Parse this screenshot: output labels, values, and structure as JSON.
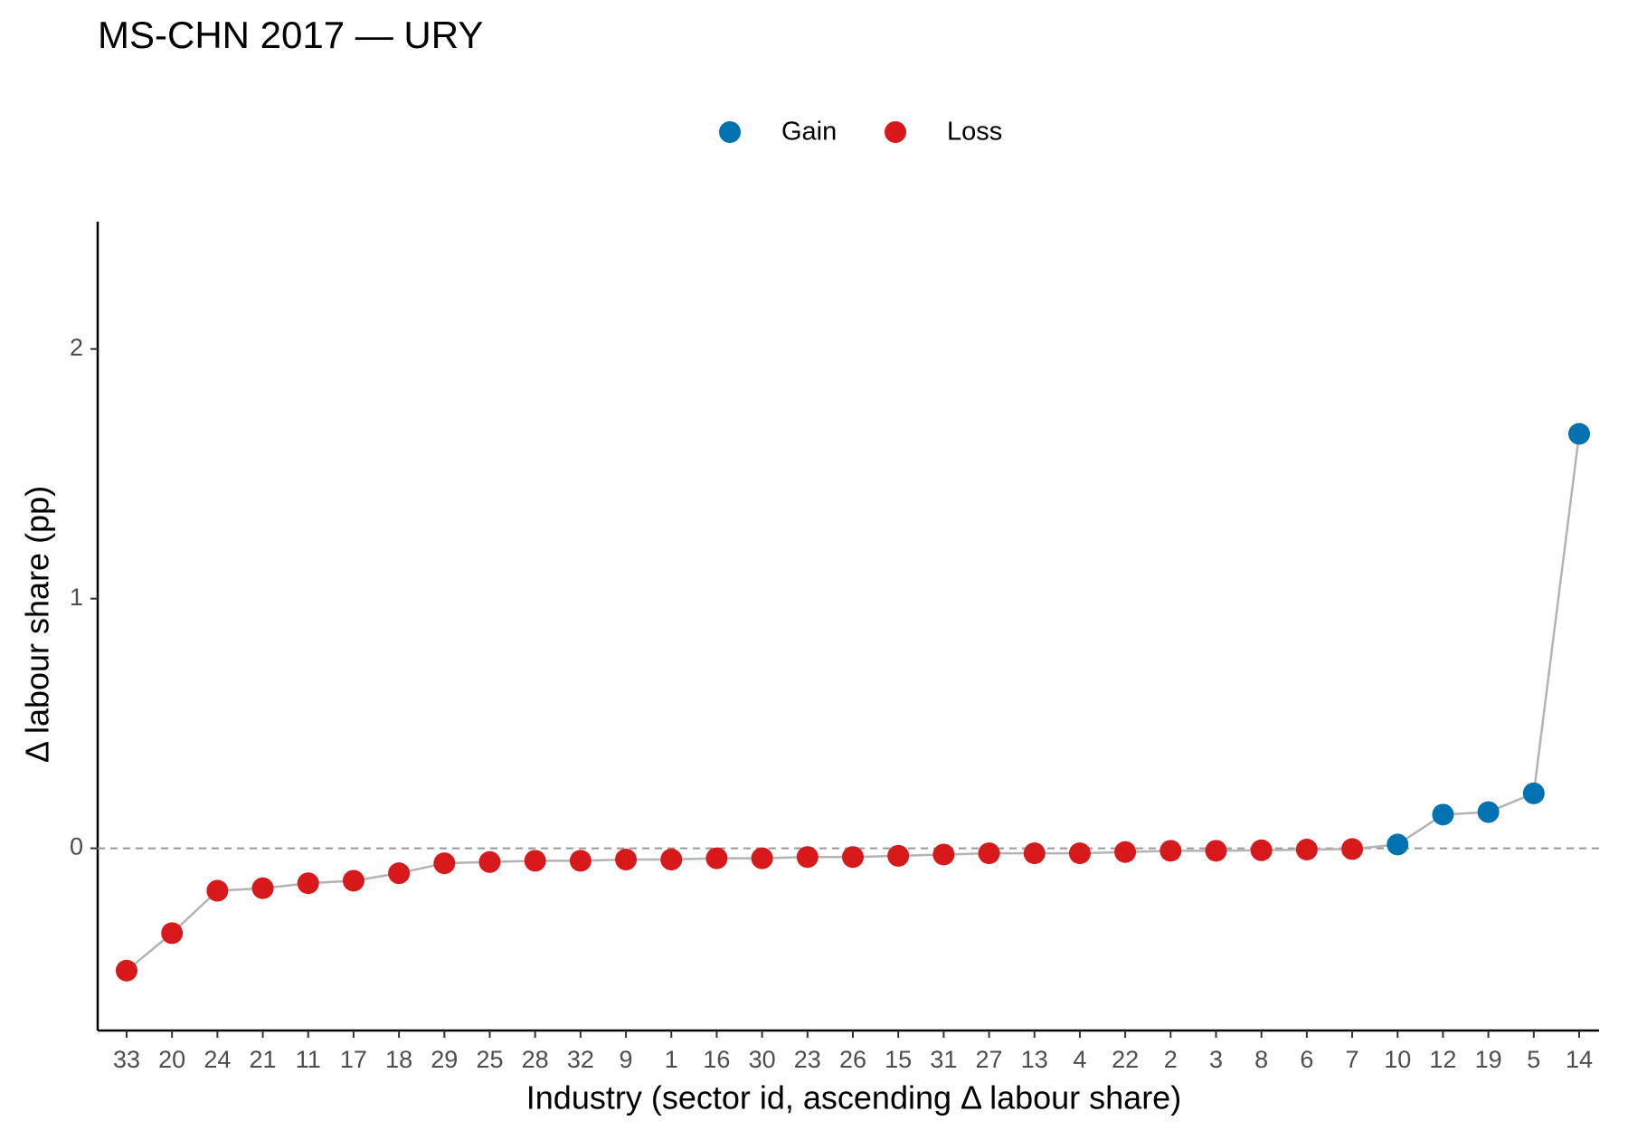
{
  "chart_data": {
    "type": "dotline",
    "title": "MS-CHN 2017 — URY",
    "x_label": "Industry (sector id, ascending Δ labour share)",
    "y_label": "Δ labour share (pp)",
    "categories": [
      "33",
      "20",
      "24",
      "21",
      "11",
      "17",
      "18",
      "29",
      "25",
      "28",
      "32",
      "9",
      "1",
      "16",
      "30",
      "23",
      "26",
      "15",
      "31",
      "27",
      "13",
      "4",
      "22",
      "2",
      "3",
      "8",
      "6",
      "7",
      "10",
      "12",
      "19",
      "5",
      "14"
    ],
    "series": [
      {
        "name": "Gain",
        "color": "#0072b2",
        "values": [
          null,
          null,
          null,
          null,
          null,
          null,
          null,
          null,
          null,
          null,
          null,
          null,
          null,
          null,
          null,
          null,
          null,
          null,
          null,
          null,
          null,
          null,
          null,
          null,
          null,
          null,
          null,
          null,
          0.015,
          0.135,
          0.145,
          0.22,
          1.66
        ]
      },
      {
        "name": "Loss",
        "color": "#d7191c",
        "values": [
          -0.49,
          -0.34,
          -0.17,
          -0.16,
          -0.14,
          -0.13,
          -0.1,
          -0.06,
          -0.055,
          -0.05,
          -0.05,
          -0.045,
          -0.045,
          -0.04,
          -0.04,
          -0.035,
          -0.035,
          -0.03,
          -0.025,
          -0.02,
          -0.02,
          -0.02,
          -0.015,
          -0.01,
          -0.01,
          -0.008,
          -0.005,
          -0.003,
          null,
          null,
          null,
          null,
          null
        ]
      }
    ],
    "line_color": "#b3b3b3",
    "reference_line": 0,
    "ylim": [
      -0.73,
      2.51
    ],
    "yticks": [
      0,
      1,
      2
    ],
    "legend": "top"
  }
}
